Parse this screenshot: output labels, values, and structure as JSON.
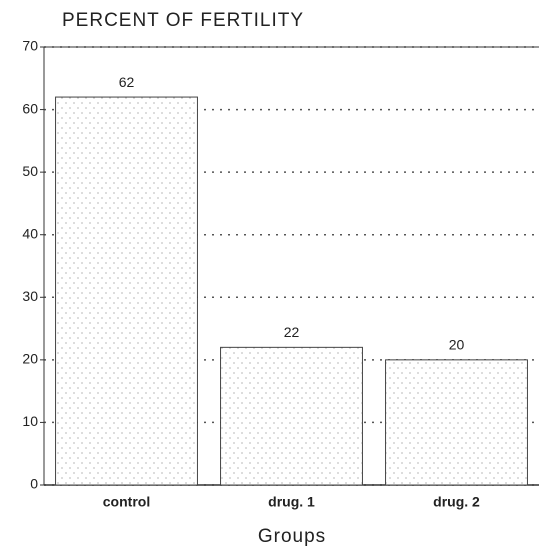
{
  "chart_data": {
    "type": "bar",
    "title": "PERCENT OF FERTILITY",
    "x_label": "Groups",
    "categories": [
      "control",
      "drug. 1",
      "drug. 2"
    ],
    "values": [
      62,
      22,
      20
    ],
    "color": "#ffffff",
    "ylim": [
      0,
      70
    ],
    "yticks": [
      0,
      10,
      20,
      30,
      40,
      50,
      60,
      70
    ],
    "grid": true
  }
}
